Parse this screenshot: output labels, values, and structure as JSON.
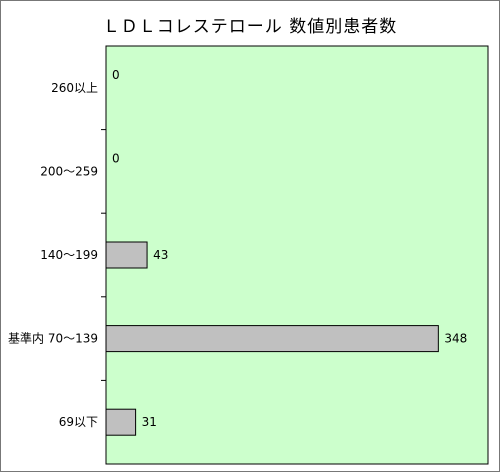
{
  "chart_data": {
    "type": "bar",
    "orientation": "horizontal",
    "title": "ＬＤＬコレステロール 数値別患者数",
    "categories": [
      "260以上",
      "200～259",
      "140～199",
      "基準内 70～139",
      "69以下"
    ],
    "values": [
      0,
      0,
      43,
      348,
      31
    ],
    "xlim": [
      0,
      400
    ],
    "grid": false,
    "legend": "none",
    "colors": {
      "plot_background": "#ccffcc",
      "bar_fill": "#c0c0c0",
      "bar_stroke": "#000000",
      "axis": "#000000"
    }
  }
}
